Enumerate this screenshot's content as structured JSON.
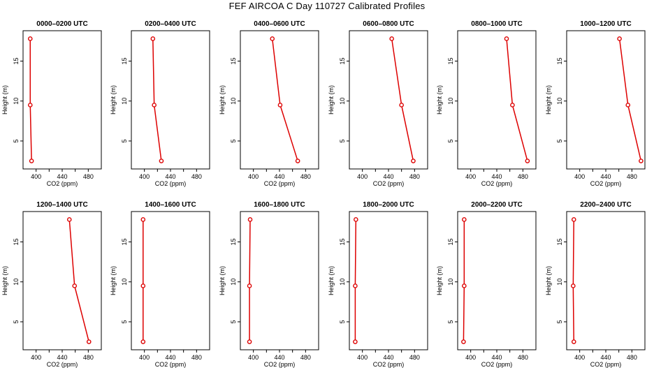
{
  "title": "FEF AIRCOA C  Day 110727  Calibrated Profiles",
  "colors": {
    "profile": "#dd0000",
    "axis": "#000000",
    "background": "#ffffff"
  },
  "chart_data": {
    "type": "line",
    "layout": "grid-2x6",
    "xlabel": "CO2 (ppm)",
    "ylabel": "Height (m)",
    "xlim": [
      380,
      500
    ],
    "ylim": [
      1.5,
      18.8
    ],
    "xticks": [
      400,
      440,
      480
    ],
    "xminor": [
      420,
      460
    ],
    "yticks": [
      5,
      10,
      15
    ],
    "grid": false,
    "heights": [
      2.5,
      9.5,
      17.8
    ],
    "panels": [
      {
        "title": "0000–0200 UTC",
        "co2": [
          393,
          391,
          391
        ]
      },
      {
        "title": "0200–0400 UTC",
        "co2": [
          426,
          415,
          413
        ]
      },
      {
        "title": "0400–0600 UTC",
        "co2": [
          468,
          441,
          429
        ]
      },
      {
        "title": "0600–0800 UTC",
        "co2": [
          478,
          460,
          445
        ]
      },
      {
        "title": "0800–1000 UTC",
        "co2": [
          487,
          464,
          455
        ]
      },
      {
        "title": "1000–1200 UTC",
        "co2": [
          494,
          474,
          461
        ]
      },
      {
        "title": "1200–1400 UTC",
        "co2": [
          481,
          459,
          451
        ]
      },
      {
        "title": "1400–1600 UTC",
        "co2": [
          398,
          398,
          398
        ]
      },
      {
        "title": "1600–1800 UTC",
        "co2": [
          394,
          394,
          395
        ]
      },
      {
        "title": "1800–2000 UTC",
        "co2": [
          389,
          389,
          390
        ]
      },
      {
        "title": "2000–2200 UTC",
        "co2": [
          389,
          390,
          390
        ]
      },
      {
        "title": "2200–2400 UTC",
        "co2": [
          391,
          390,
          391
        ]
      }
    ]
  }
}
